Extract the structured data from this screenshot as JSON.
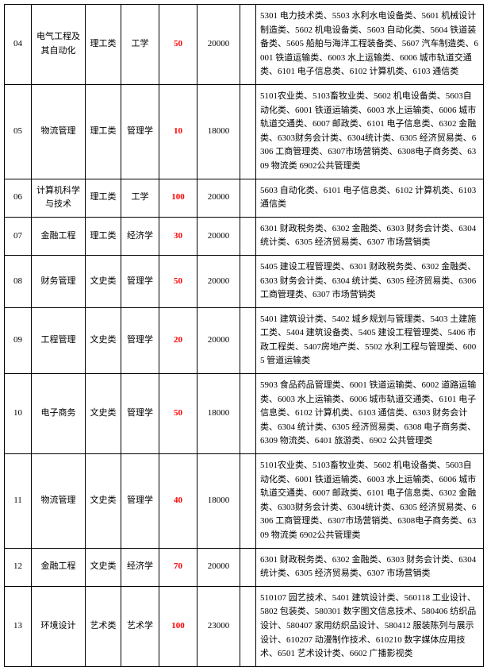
{
  "columns": {
    "widths": [
      34,
      68,
      45,
      48,
      48,
      54,
      20,
      287
    ]
  },
  "styles": {
    "accent_color": "#ff0000",
    "border_color": "#000000",
    "background_color": "#ffffff",
    "font_family": "SimSun",
    "base_font_size": 11,
    "line_height": 1.6
  },
  "rows": [
    {
      "code": "04",
      "major": "电气工程及其自动化",
      "category": "理工类",
      "degree": "工学",
      "quota": "50",
      "fee": "20000",
      "spacer": "",
      "desc": "5301 电力技术类、5503 水利水电设备类、5601 机械设计制造类、5602 机电设备类、5603 自动化类、5604 铁道装备类、5605 船舶与海洋工程装备类、5607 汽车制造类、6001 铁道运输类、6003 水上运输类、6006 城市轨道交通类、6101 电子信息类、6102 计算机类、6103 通信类"
    },
    {
      "code": "05",
      "major": "物流管理",
      "category": "理工类",
      "degree": "管理学",
      "quota": "10",
      "fee": "18000",
      "spacer": "",
      "desc": "5101农业类、5103畜牧业类、5602 机电设备类、5603自动化类、6001 铁道运输类、6003 水上运输类、6006 城市轨道交通类、6007 邮政类、6101 电子信息类、6302 金融类、6303财务会计类、6304统计类、6305 经济贸易类、6306 工商管理类、6307市场营销类、6308电子商务类、6309 物流类 6902公共管理类"
    },
    {
      "code": "06",
      "major": "计算机科学与技术",
      "category": "理工类",
      "degree": "工学",
      "quota": "100",
      "fee": "20000",
      "spacer": "",
      "desc": "5603 自动化类、6101 电子信息类、6102 计算机类、6103 通信类"
    },
    {
      "code": "07",
      "major": "金融工程",
      "category": "理工类",
      "degree": "经济学",
      "quota": "30",
      "fee": "20000",
      "spacer": "",
      "desc": "6301 财政税务类、6302 金融类、6303 财务会计类、6304 统计类、6305 经济贸易类、6307 市场营销类"
    },
    {
      "code": "08",
      "major": "财务管理",
      "category": "文史类",
      "degree": "管理学",
      "quota": "50",
      "fee": "20000",
      "spacer": "",
      "desc": "5405 建设工程管理类、6301 财政税务类、6302 金融类、6303 财务会计类、6304 统计类、6305 经济贸易类、6306 工商管理类、6307 市场营销类"
    },
    {
      "code": "09",
      "major": "工程管理",
      "category": "文史类",
      "degree": "管理学",
      "quota": "20",
      "fee": "20000",
      "spacer": "",
      "desc": "5401 建筑设计类、5402 城乡规划与管理类、5403 土建施工类、5404 建筑设备类、5405 建设工程管理类、5406 市政工程类、5407房地产类、5502 水利工程与管理类、6005 管道运输类"
    },
    {
      "code": "10",
      "major": "电子商务",
      "category": "文史类",
      "degree": "管理学",
      "quota": "50",
      "fee": "18000",
      "spacer": "",
      "desc": "5903 食品药品管理类、6001 铁道运输类、6002 道路运输类、6003 水上运输类、6006 城市轨道交通类、6101 电子信息类、6102 计算机类、6103 通信类、6303 财务会计类、6304 统计类、6305 经济贸易类、6308 电子商务类、6309 物流类、6401 旅游类、6902 公共管理类"
    },
    {
      "code": "11",
      "major": "物流管理",
      "category": "文史类",
      "degree": "管理学",
      "quota": "40",
      "fee": "18000",
      "spacer": "",
      "desc": "5101农业类、5103畜牧业类、5602 机电设备类、5603自动化类、6001 铁道运输类、6003 水上运输类、6006 城市轨道交通类、6007 邮政类、6101 电子信息类、6302 金融类、6303财务会计类、6304统计类、6305 经济贸易类、6306 工商管理类、6307市场营销类、6308电子商务类、6309 物流类 6902公共管理类"
    },
    {
      "code": "12",
      "major": "金融工程",
      "category": "文史类",
      "degree": "经济学",
      "quota": "70",
      "fee": "20000",
      "spacer": "",
      "desc": "6301 财政税务类、6302 金融类、6303 财务会计类、6304 统计类、6305 经济贸易类、6307 市场营销类"
    },
    {
      "code": "13",
      "major": "环境设计",
      "category": "艺术类",
      "degree": "艺术学",
      "quota": "100",
      "fee": "23000",
      "spacer": "",
      "desc": "510107 园艺技术、5401 建筑设计类、560118 工业设计、5802 包装类、580301 数字图文信息技术、580406 纺织品设计、580407 家用纺织品设计、580412 服装陈列与展示设计、610207 动漫制作技术、610210 数字媒体应用技术、6501 艺术设计类、6602 广播影视类"
    }
  ]
}
